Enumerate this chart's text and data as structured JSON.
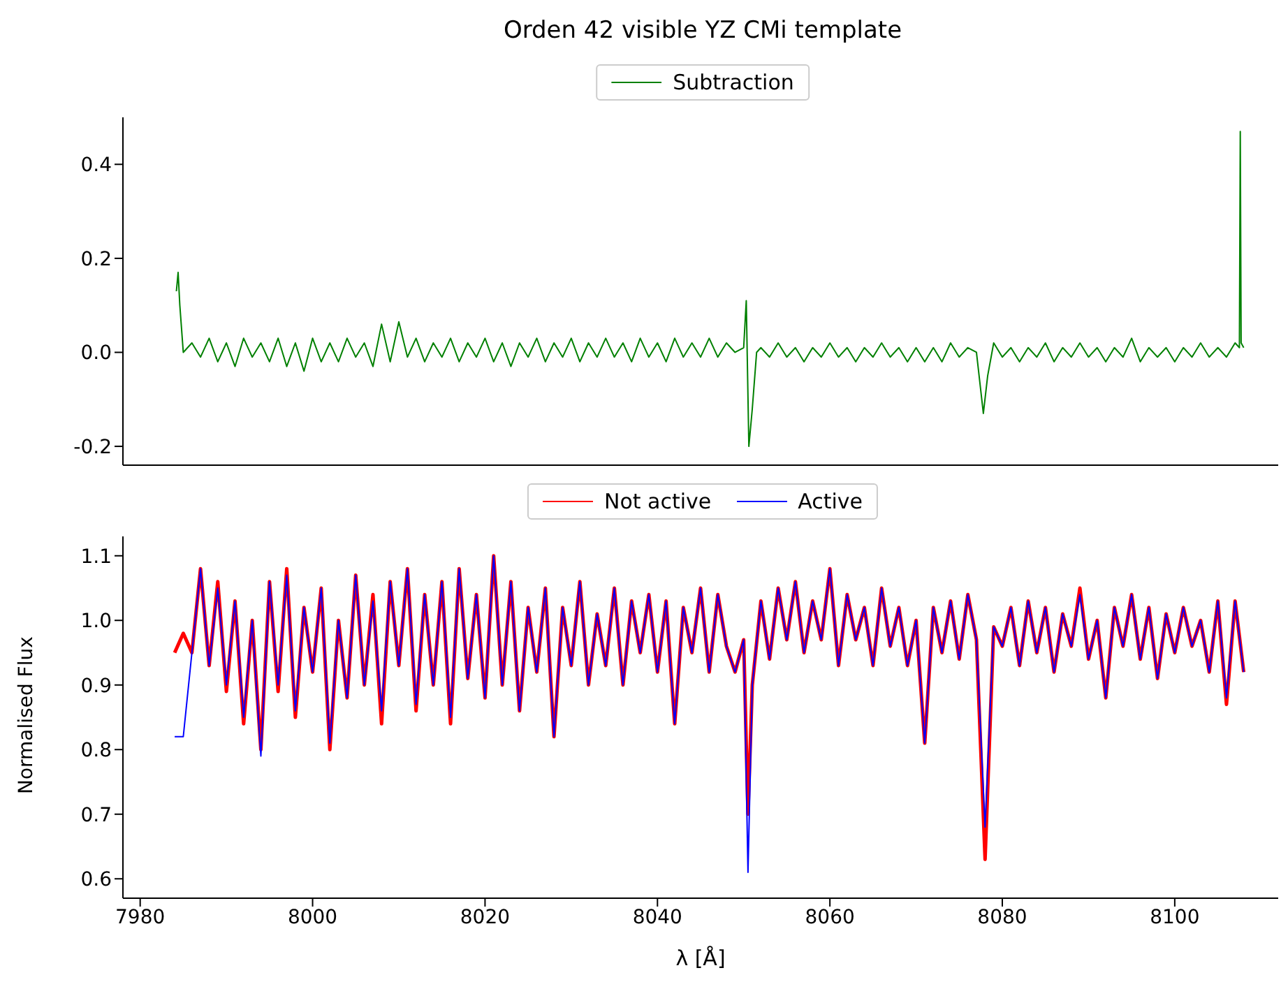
{
  "chart_data": [
    {
      "type": "line",
      "title": "Orden 42 visible YZ CMi template",
      "xlim": [
        7978,
        8112
      ],
      "xticks": [
        7980,
        8000,
        8020,
        8040,
        8060,
        8080,
        8100
      ],
      "ylim": [
        -0.24,
        0.5
      ],
      "yticks": [
        -0.2,
        {
          "value": 0,
          "label": "0.0"
        },
        0.2,
        0.4
      ],
      "tick_labels": "y",
      "grid": false,
      "legend": "top",
      "marker": "none",
      "line_style": "solid",
      "series": [
        {
          "name": "Subtraction",
          "color": "#008000",
          "x": [
            7984.2,
            7984.4,
            7984.6,
            7985,
            7986,
            7987,
            7988,
            7989,
            7990,
            7991,
            7992,
            7993,
            7994,
            7995,
            7996,
            7997,
            7998,
            7999,
            8000,
            8001,
            8002,
            8003,
            8004,
            8005,
            8006,
            8007,
            8008,
            8009,
            8010,
            8011,
            8012,
            8013,
            8014,
            8015,
            8016,
            8017,
            8018,
            8019,
            8020,
            8021,
            8022,
            8023,
            8024,
            8025,
            8026,
            8027,
            8028,
            8029,
            8030,
            8031,
            8032,
            8033,
            8034,
            8035,
            8036,
            8037,
            8038,
            8039,
            8040,
            8041,
            8042,
            8043,
            8044,
            8045,
            8046,
            8047,
            8048,
            8049,
            8050,
            8050.3,
            8050.6,
            8051,
            8051.5,
            8052,
            8053,
            8054,
            8055,
            8056,
            8057,
            8058,
            8059,
            8060,
            8061,
            8062,
            8063,
            8064,
            8065,
            8066,
            8067,
            8068,
            8069,
            8070,
            8071,
            8072,
            8073,
            8074,
            8075,
            8076,
            8077,
            8077.8,
            8078.3,
            8079,
            8080,
            8081,
            8082,
            8083,
            8084,
            8085,
            8086,
            8087,
            8088,
            8089,
            8090,
            8091,
            8092,
            8093,
            8094,
            8095,
            8096,
            8097,
            8098,
            8099,
            8100,
            8101,
            8102,
            8103,
            8104,
            8105,
            8106,
            8107,
            8107.5,
            8107.6,
            8107.7,
            8108
          ],
          "values": [
            0.13,
            0.17,
            0.1,
            0.0,
            0.02,
            -0.01,
            0.03,
            -0.02,
            0.02,
            -0.03,
            0.03,
            -0.01,
            0.02,
            -0.02,
            0.03,
            -0.03,
            0.02,
            -0.04,
            0.03,
            -0.02,
            0.02,
            -0.02,
            0.03,
            -0.01,
            0.02,
            -0.03,
            0.06,
            -0.02,
            0.065,
            -0.01,
            0.03,
            -0.02,
            0.02,
            -0.01,
            0.03,
            -0.02,
            0.02,
            -0.01,
            0.03,
            -0.02,
            0.02,
            -0.03,
            0.02,
            -0.01,
            0.03,
            -0.02,
            0.02,
            -0.01,
            0.03,
            -0.02,
            0.02,
            -0.01,
            0.03,
            -0.01,
            0.02,
            -0.02,
            0.03,
            -0.01,
            0.02,
            -0.02,
            0.03,
            -0.01,
            0.02,
            -0.01,
            0.03,
            -0.01,
            0.02,
            0.0,
            0.01,
            0.11,
            -0.2,
            -0.12,
            0.0,
            0.01,
            -0.01,
            0.02,
            -0.01,
            0.01,
            -0.02,
            0.01,
            -0.01,
            0.02,
            -0.01,
            0.01,
            -0.02,
            0.01,
            -0.01,
            0.02,
            -0.01,
            0.01,
            -0.02,
            0.01,
            -0.02,
            0.01,
            -0.02,
            0.02,
            -0.01,
            0.01,
            0.0,
            -0.13,
            -0.05,
            0.02,
            -0.01,
            0.01,
            -0.02,
            0.01,
            -0.01,
            0.02,
            -0.02,
            0.01,
            -0.01,
            0.02,
            -0.01,
            0.01,
            -0.02,
            0.01,
            -0.01,
            0.03,
            -0.02,
            0.01,
            -0.01,
            0.01,
            -0.02,
            0.01,
            -0.01,
            0.02,
            -0.01,
            0.01,
            -0.01,
            0.02,
            0.01,
            0.47,
            0.02,
            0.01
          ]
        }
      ]
    },
    {
      "type": "line",
      "xlabel": "λ  [Å]",
      "ylabel": "Normalised Flux",
      "xlim": [
        7978,
        8112
      ],
      "xticks": [
        7980,
        8000,
        8020,
        8040,
        8060,
        8080,
        8100
      ],
      "ylim": [
        0.57,
        1.13
      ],
      "yticks": [
        0.6,
        0.7,
        0.8,
        0.9,
        {
          "value": 1,
          "label": "1.0"
        },
        1.1
      ],
      "grid": false,
      "legend": "top",
      "marker": "none",
      "line_style": "solid",
      "x": [
        7984,
        7985,
        7986,
        7987,
        7988,
        7989,
        7990,
        7991,
        7992,
        7993,
        7994,
        7995,
        7996,
        7997,
        7998,
        7999,
        8000,
        8001,
        8002,
        8003,
        8004,
        8005,
        8006,
        8007,
        8008,
        8009,
        8010,
        8011,
        8012,
        8013,
        8014,
        8015,
        8016,
        8017,
        8018,
        8019,
        8020,
        8021,
        8022,
        8023,
        8024,
        8025,
        8026,
        8027,
        8028,
        8029,
        8030,
        8031,
        8032,
        8033,
        8034,
        8035,
        8036,
        8037,
        8038,
        8039,
        8040,
        8041,
        8042,
        8043,
        8044,
        8045,
        8046,
        8047,
        8048,
        8049,
        8050,
        8050.5,
        8051,
        8052,
        8053,
        8054,
        8055,
        8056,
        8057,
        8058,
        8059,
        8060,
        8061,
        8062,
        8063,
        8064,
        8065,
        8066,
        8067,
        8068,
        8069,
        8070,
        8071,
        8072,
        8073,
        8074,
        8075,
        8076,
        8077,
        8078,
        8079,
        8080,
        8081,
        8082,
        8083,
        8084,
        8085,
        8086,
        8087,
        8088,
        8089,
        8090,
        8091,
        8092,
        8093,
        8094,
        8095,
        8096,
        8097,
        8098,
        8099,
        8100,
        8101,
        8102,
        8103,
        8104,
        8105,
        8106,
        8107,
        8108
      ],
      "series": [
        {
          "name": "Not active",
          "color": "#ff0000",
          "values": [
            0.95,
            0.98,
            0.95,
            1.08,
            0.93,
            1.06,
            0.89,
            1.03,
            0.84,
            1.0,
            0.8,
            1.06,
            0.89,
            1.08,
            0.85,
            1.02,
            0.92,
            1.05,
            0.8,
            1.0,
            0.88,
            1.07,
            0.9,
            1.04,
            0.84,
            1.06,
            0.93,
            1.08,
            0.86,
            1.04,
            0.9,
            1.06,
            0.84,
            1.08,
            0.91,
            1.04,
            0.88,
            1.1,
            0.9,
            1.06,
            0.86,
            1.02,
            0.92,
            1.05,
            0.82,
            1.02,
            0.93,
            1.06,
            0.9,
            1.01,
            0.93,
            1.05,
            0.9,
            1.03,
            0.95,
            1.04,
            0.92,
            1.03,
            0.84,
            1.02,
            0.95,
            1.05,
            0.92,
            1.04,
            0.96,
            0.92,
            0.97,
            0.7,
            0.9,
            1.03,
            0.94,
            1.05,
            0.97,
            1.06,
            0.95,
            1.03,
            0.97,
            1.08,
            0.93,
            1.04,
            0.97,
            1.02,
            0.93,
            1.05,
            0.96,
            1.02,
            0.93,
            1.0,
            0.81,
            1.02,
            0.95,
            1.03,
            0.94,
            1.04,
            0.97,
            0.63,
            0.99,
            0.96,
            1.02,
            0.93,
            1.03,
            0.95,
            1.02,
            0.92,
            1.01,
            0.96,
            1.05,
            0.94,
            1.0,
            0.88,
            1.02,
            0.96,
            1.04,
            0.94,
            1.02,
            0.91,
            1.01,
            0.95,
            1.02,
            0.96,
            1.0,
            0.92,
            1.03,
            0.87,
            1.03,
            0.92
          ]
        },
        {
          "name": "Active",
          "color": "#0000ff",
          "values": [
            0.82,
            0.82,
            0.95,
            1.08,
            0.93,
            1.05,
            0.9,
            1.03,
            0.85,
            1.0,
            0.79,
            1.06,
            0.9,
            1.07,
            0.86,
            1.02,
            0.92,
            1.05,
            0.81,
            1.0,
            0.88,
            1.07,
            0.9,
            1.03,
            0.86,
            1.06,
            0.93,
            1.08,
            0.87,
            1.04,
            0.9,
            1.06,
            0.85,
            1.08,
            0.91,
            1.04,
            0.88,
            1.1,
            0.9,
            1.06,
            0.86,
            1.02,
            0.92,
            1.05,
            0.82,
            1.02,
            0.93,
            1.06,
            0.9,
            1.01,
            0.93,
            1.05,
            0.9,
            1.03,
            0.95,
            1.04,
            0.92,
            1.03,
            0.84,
            1.02,
            0.95,
            1.05,
            0.92,
            1.04,
            0.96,
            0.92,
            0.97,
            0.61,
            0.9,
            1.03,
            0.94,
            1.05,
            0.97,
            1.06,
            0.95,
            1.03,
            0.97,
            1.08,
            0.93,
            1.04,
            0.97,
            1.02,
            0.93,
            1.05,
            0.96,
            1.02,
            0.93,
            1.0,
            0.81,
            1.02,
            0.95,
            1.03,
            0.94,
            1.04,
            0.97,
            0.68,
            0.99,
            0.96,
            1.02,
            0.93,
            1.03,
            0.95,
            1.02,
            0.92,
            1.01,
            0.96,
            1.04,
            0.94,
            1.0,
            0.88,
            1.02,
            0.96,
            1.04,
            0.94,
            1.02,
            0.91,
            1.01,
            0.95,
            1.02,
            0.96,
            1.0,
            0.92,
            1.03,
            0.88,
            1.03,
            0.92
          ]
        }
      ]
    }
  ]
}
